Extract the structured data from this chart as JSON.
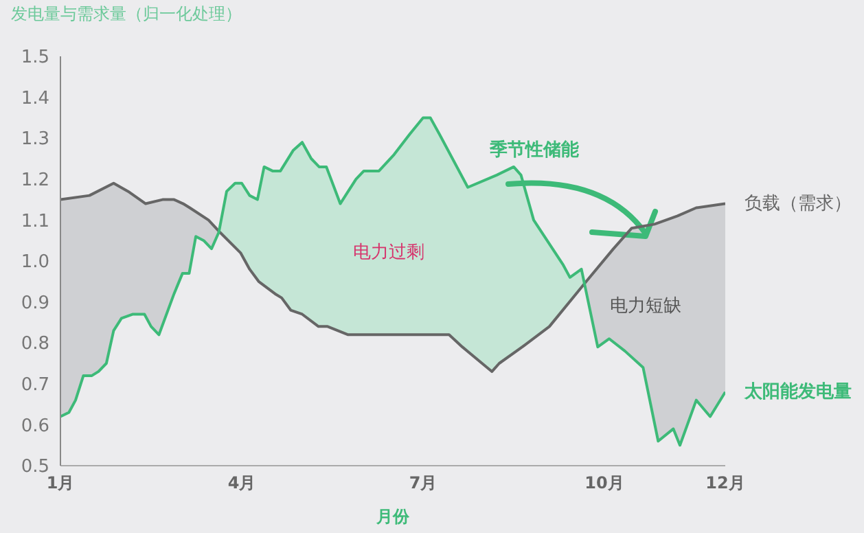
{
  "chart_data": {
    "type": "line",
    "title": "发电量与需求量（归一化处理）",
    "xlabel": "月份",
    "xlim": [
      1,
      12
    ],
    "xticks": [
      {
        "value": 1,
        "label": "1月"
      },
      {
        "value": 4,
        "label": "4月"
      },
      {
        "value": 7,
        "label": "7月"
      },
      {
        "value": 10,
        "label": "10月"
      },
      {
        "value": 12,
        "label": "12月"
      }
    ],
    "ylim": [
      0.5,
      1.5
    ],
    "yticks": [
      0.5,
      0.6,
      0.7,
      0.8,
      0.9,
      {
        "value": 1,
        "label": "1.0"
      },
      1.1,
      1.2,
      1.3,
      1.4,
      1.5
    ],
    "marker": "none",
    "line_style": "solid",
    "annotations": [
      "电力过剩",
      "季节性储能",
      "电力短缺"
    ],
    "series": [
      {
        "name": "负载（需求）",
        "color": "#666666",
        "x": [
          1.0,
          1.48,
          1.88,
          2.12,
          2.41,
          2.69,
          2.88,
          3.03,
          3.14,
          3.45,
          3.64,
          3.98,
          4.13,
          4.28,
          4.55,
          4.66,
          4.81,
          5.0,
          5.27,
          5.42,
          5.76,
          6.06,
          6.36,
          6.67,
          6.89,
          7.2,
          7.43,
          7.65,
          8.14,
          8.26,
          8.64,
          9.09,
          9.7,
          10.15,
          10.45,
          10.83,
          11.21,
          11.52,
          12.0
        ],
        "values": [
          1.15,
          1.16,
          1.19,
          1.17,
          1.14,
          1.15,
          1.15,
          1.14,
          1.13,
          1.1,
          1.07,
          1.02,
          0.98,
          0.95,
          0.92,
          0.91,
          0.88,
          0.87,
          0.84,
          0.84,
          0.82,
          0.82,
          0.82,
          0.82,
          0.82,
          0.82,
          0.82,
          0.79,
          0.73,
          0.75,
          0.79,
          0.84,
          0.95,
          1.03,
          1.08,
          1.09,
          1.11,
          1.13,
          1.14
        ]
      },
      {
        "name": "太阳能发电量",
        "color": "#3dba78",
        "x": [
          1.0,
          1.14,
          1.25,
          1.38,
          1.52,
          1.63,
          1.76,
          1.88,
          2.01,
          2.2,
          2.39,
          2.5,
          2.63,
          2.88,
          3.02,
          3.13,
          3.24,
          3.37,
          3.5,
          3.62,
          3.75,
          3.89,
          4.0,
          4.13,
          4.26,
          4.37,
          4.51,
          4.64,
          4.85,
          5.0,
          5.15,
          5.28,
          5.4,
          5.63,
          5.89,
          6.02,
          6.27,
          6.52,
          6.78,
          7.0,
          7.12,
          7.27,
          7.74,
          8.22,
          8.5,
          8.62,
          8.83,
          9.32,
          9.43,
          9.62,
          9.89,
          10.08,
          10.34,
          10.64,
          10.89,
          11.14,
          11.25,
          11.52,
          11.75,
          12.0
        ],
        "values": [
          0.62,
          0.63,
          0.66,
          0.72,
          0.72,
          0.73,
          0.75,
          0.83,
          0.86,
          0.87,
          0.87,
          0.84,
          0.82,
          0.92,
          0.97,
          0.97,
          1.06,
          1.05,
          1.03,
          1.07,
          1.17,
          1.19,
          1.19,
          1.16,
          1.15,
          1.23,
          1.22,
          1.22,
          1.27,
          1.29,
          1.25,
          1.23,
          1.23,
          1.14,
          1.2,
          1.22,
          1.22,
          1.26,
          1.31,
          1.35,
          1.35,
          1.31,
          1.18,
          1.21,
          1.23,
          1.21,
          1.1,
          0.99,
          0.96,
          0.98,
          0.79,
          0.81,
          0.78,
          0.74,
          0.56,
          0.59,
          0.55,
          0.66,
          0.62,
          0.68
        ]
      }
    ]
  }
}
